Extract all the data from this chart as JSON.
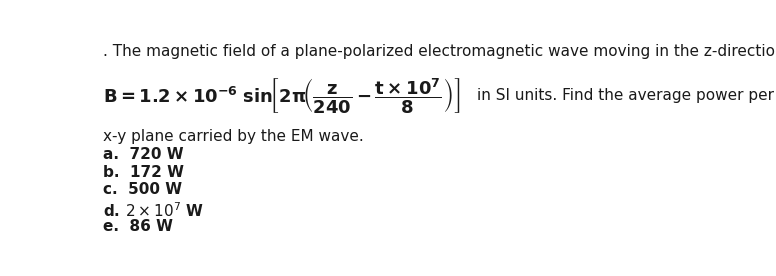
{
  "bg_color": "#ffffff",
  "text_color": "#1a1a1a",
  "header_line": ". The magnetic field of a plane-polarized electromagnetic wave moving in the z-direction is given by",
  "continuation_line": "in SI units. Find the average power per square meter in the",
  "xy_line": "x-y plane carried by the EM wave.",
  "options": [
    "a.  720 W",
    "b.  172 W",
    "c.  500 W",
    "e.  86 W"
  ],
  "figsize": [
    7.76,
    2.76
  ],
  "dpi": 100
}
